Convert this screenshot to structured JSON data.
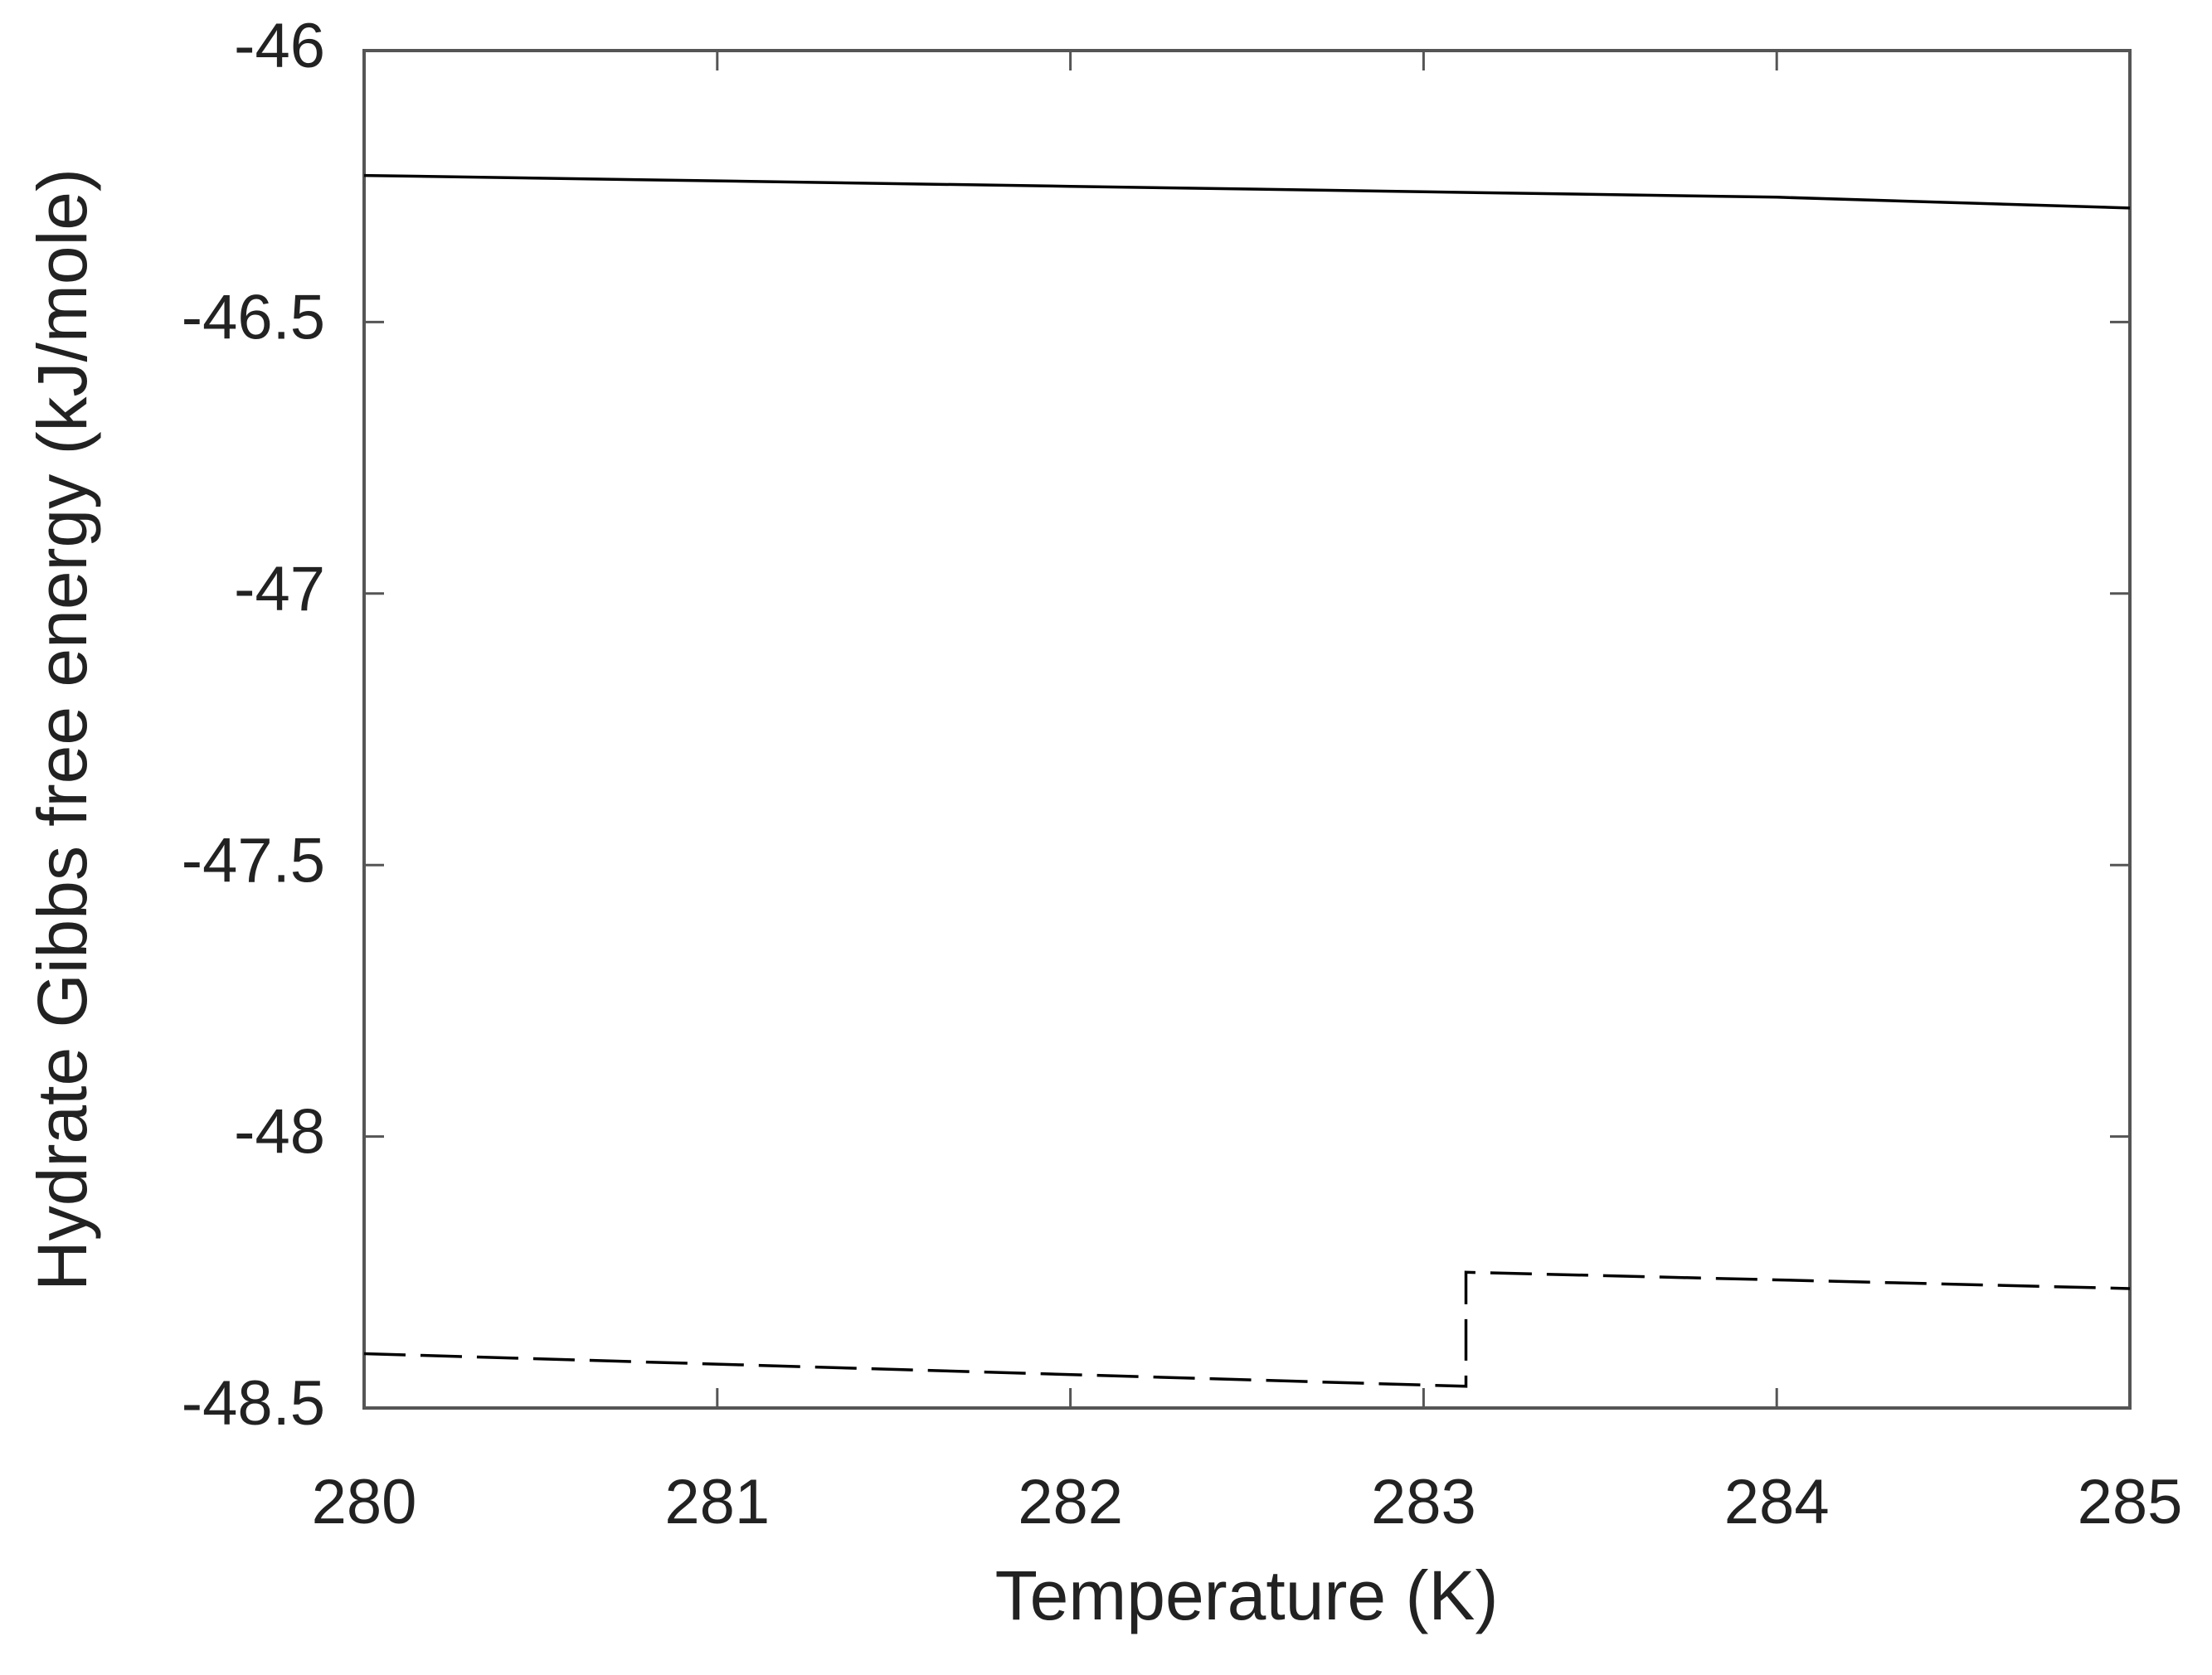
{
  "chart_data": {
    "type": "line",
    "xlabel": "Temperature (K)",
    "ylabel": "Hydrate Gibbs free energy (kJ/mole)",
    "series": [
      {
        "color": "#000000",
        "linestyle": "solid",
        "x": [
          280,
          281,
          282,
          283,
          284,
          285
        ],
        "values": [
          -46.23,
          -46.24,
          -46.25,
          -46.26,
          -46.27,
          -46.29
        ]
      },
      {
        "color": "#000000",
        "linestyle": "dashed",
        "x": [
          280,
          283.12,
          283.12,
          285
        ],
        "values": [
          -48.4,
          -48.46,
          -48.25,
          -48.28
        ]
      }
    ],
    "xlim": [
      280,
      285
    ],
    "xticks": [
      280,
      281,
      282,
      283,
      284,
      285
    ],
    "ylim": [
      -48.5,
      -46
    ],
    "yticks": [
      -46,
      -46.5,
      -47,
      -47.5,
      -48,
      -48.5
    ],
    "grid": false
  }
}
